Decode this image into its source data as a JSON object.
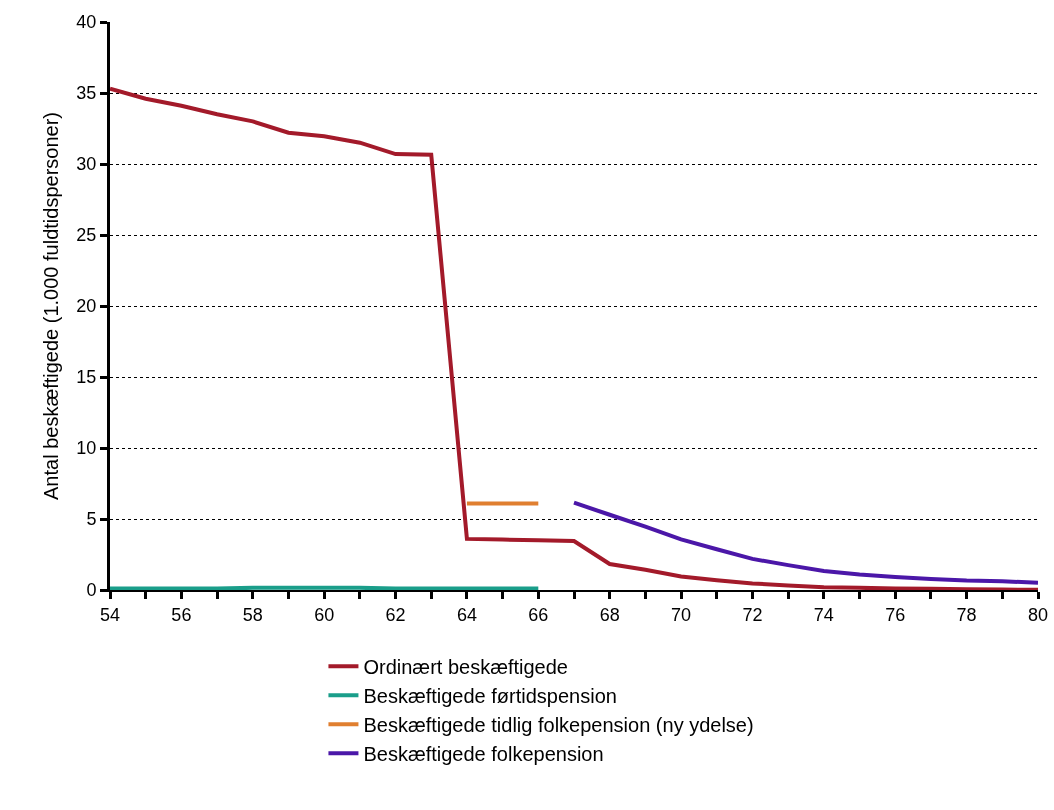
{
  "chart_data": {
    "type": "line",
    "ylabel": "Antal beskæftigede (1.000 fuldtidspersoner)",
    "x": [
      54,
      55,
      56,
      57,
      58,
      59,
      60,
      61,
      62,
      63,
      64,
      65,
      66,
      67,
      68,
      69,
      70,
      71,
      72,
      73,
      74,
      75,
      76,
      77,
      78,
      79,
      80
    ],
    "series": [
      {
        "name": "Ordinært beskæftigede",
        "color": "#a31a2a",
        "values": [
          35.3,
          34.6,
          34.1,
          33.5,
          33.0,
          32.2,
          31.95,
          31.5,
          30.7,
          30.65,
          3.6,
          3.55,
          3.5,
          3.45,
          1.83,
          1.42,
          0.95,
          0.69,
          0.46,
          0.32,
          0.2,
          0.15,
          0.1,
          0.08,
          0.05,
          0.03,
          0.02
        ]
      },
      {
        "name": "Beskæftigede førtidspension",
        "color": "#1a9e8a",
        "values": [
          0.1,
          0.1,
          0.1,
          0.1,
          0.15,
          0.15,
          0.15,
          0.15,
          0.1,
          0.1,
          0.1,
          0.1,
          0.1,
          null,
          null,
          null,
          null,
          null,
          null,
          null,
          null,
          null,
          null,
          null,
          null,
          null,
          null
        ]
      },
      {
        "name": "Beskæftigede tidlig folkepension (ny ydelse)",
        "color": "#e07f30",
        "values": [
          null,
          null,
          null,
          null,
          null,
          null,
          null,
          null,
          null,
          null,
          6.1,
          6.1,
          6.1,
          null,
          null,
          null,
          null,
          null,
          null,
          null,
          null,
          null,
          null,
          null,
          null,
          null,
          null
        ]
      },
      {
        "name": "Beskæftigede folkepension",
        "color": "#4b17a8",
        "values": [
          null,
          null,
          null,
          null,
          null,
          null,
          null,
          null,
          null,
          null,
          null,
          null,
          null,
          6.15,
          5.3,
          4.47,
          3.57,
          2.87,
          2.19,
          1.75,
          1.34,
          1.09,
          0.92,
          0.78,
          0.67,
          0.62,
          0.51
        ]
      }
    ],
    "xlim": [
      54,
      80
    ],
    "xticks": [
      54,
      {
        "value": 55,
        "label": null
      },
      56,
      {
        "value": 57,
        "label": null
      },
      58,
      {
        "value": 59,
        "label": null
      },
      60,
      {
        "value": 61,
        "label": null
      },
      62,
      {
        "value": 63,
        "label": null
      },
      64,
      {
        "value": 65,
        "label": null
      },
      66,
      {
        "value": 67,
        "label": null
      },
      68,
      {
        "value": 69,
        "label": null
      },
      70,
      {
        "value": 71,
        "label": null
      },
      72,
      {
        "value": 73,
        "label": null
      },
      74,
      {
        "value": 75,
        "label": null
      },
      76,
      {
        "value": 77,
        "label": null
      },
      78,
      {
        "value": 79,
        "label": null
      },
      80
    ],
    "ylim": [
      0,
      40
    ],
    "yticks": [
      0,
      5,
      10,
      15,
      20,
      25,
      30,
      35,
      40
    ],
    "grid": "y",
    "legend": "bottom",
    "marker": "none",
    "line_style": "solid"
  }
}
